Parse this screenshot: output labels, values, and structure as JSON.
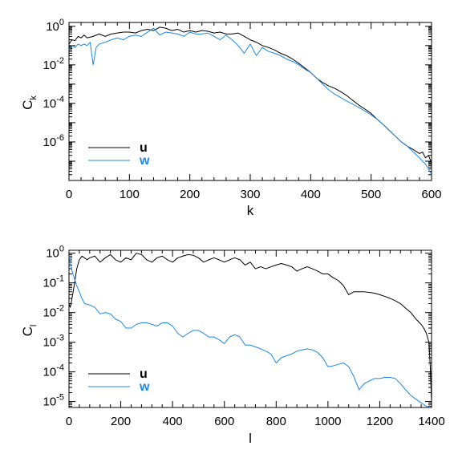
{
  "colors": {
    "u": "#000000",
    "w": "#1e88e5"
  },
  "chart_data": [
    {
      "type": "line",
      "xlabel": "k",
      "ylabel_main": "C",
      "ylabel_sub": "k",
      "xlim": [
        0,
        600
      ],
      "ylim_log10": [
        -8,
        0.2
      ],
      "x_ticks": [
        0,
        100,
        200,
        300,
        400,
        500,
        600
      ],
      "y_ticks": [
        {
          "value": 1,
          "base": "10",
          "exp": "0"
        },
        {
          "value": 0.01,
          "base": "10",
          "exp": "-2"
        },
        {
          "value": 0.0001,
          "base": "10",
          "exp": "-4"
        },
        {
          "value": 1e-06,
          "base": "10",
          "exp": "-6"
        }
      ],
      "legend_position": "bottom-left",
      "series": [
        {
          "name": "u",
          "x": [
            0,
            5,
            10,
            15,
            20,
            25,
            30,
            40,
            50,
            60,
            70,
            80,
            90,
            100,
            110,
            120,
            130,
            140,
            150,
            160,
            170,
            180,
            190,
            200,
            210,
            220,
            230,
            240,
            250,
            260,
            270,
            280,
            290,
            300,
            310,
            320,
            330,
            340,
            350,
            360,
            370,
            380,
            390,
            400,
            410,
            420,
            430,
            440,
            450,
            460,
            470,
            480,
            490,
            500,
            510,
            520,
            530,
            540,
            550,
            560,
            570,
            580,
            585,
            590,
            595,
            600
          ],
          "y": [
            0.12,
            0.2,
            0.18,
            0.3,
            0.25,
            0.35,
            0.25,
            0.3,
            0.4,
            0.3,
            0.4,
            0.45,
            0.5,
            0.5,
            0.45,
            0.6,
            0.7,
            0.6,
            0.9,
            0.8,
            0.6,
            0.7,
            0.5,
            0.6,
            0.5,
            0.6,
            0.55,
            0.45,
            0.5,
            0.4,
            0.4,
            0.45,
            0.3,
            0.2,
            0.15,
            0.1,
            0.08,
            0.06,
            0.04,
            0.03,
            0.02,
            0.012,
            0.007,
            0.004,
            0.002,
            0.0012,
            0.0008,
            0.0006,
            0.0004,
            0.00025,
            0.00014,
            8e-05,
            5e-05,
            3e-05,
            1.5e-05,
            8e-06,
            4e-06,
            2e-06,
            1e-06,
            6e-07,
            4e-07,
            2.5e-07,
            3e-07,
            1.5e-07,
            2e-07,
            8e-08
          ]
        },
        {
          "name": "w",
          "x": [
            0,
            5,
            10,
            15,
            20,
            25,
            30,
            35,
            40,
            45,
            50,
            60,
            70,
            80,
            90,
            100,
            110,
            120,
            130,
            140,
            150,
            160,
            170,
            180,
            190,
            200,
            210,
            220,
            230,
            240,
            250,
            260,
            270,
            280,
            290,
            300,
            310,
            320,
            330,
            340,
            350,
            360,
            370,
            380,
            390,
            400,
            410,
            420,
            430,
            440,
            450,
            460,
            470,
            480,
            490,
            500,
            510,
            520,
            530,
            540,
            550,
            560,
            570,
            580,
            590,
            595,
            600
          ],
          "y": [
            0.06,
            0.1,
            0.08,
            0.12,
            0.1,
            0.12,
            0.1,
            0.15,
            0.01,
            0.08,
            0.12,
            0.15,
            0.2,
            0.25,
            0.2,
            0.3,
            0.35,
            0.3,
            0.5,
            0.8,
            0.35,
            0.5,
            0.45,
            0.4,
            0.3,
            0.5,
            0.4,
            0.4,
            0.45,
            0.3,
            0.2,
            0.35,
            0.2,
            0.1,
            0.04,
            0.12,
            0.03,
            0.08,
            0.05,
            0.04,
            0.03,
            0.02,
            0.015,
            0.01,
            0.006,
            0.004,
            0.002,
            0.001,
            0.0005,
            0.0003,
            0.0002,
            0.00013,
            9e-05,
            6e-05,
            4e-05,
            2.5e-05,
            1.5e-05,
            8e-06,
            4e-06,
            2e-06,
            1e-06,
            6e-07,
            3e-07,
            1.5e-07,
            7e-08,
            4e-08,
            2e-08
          ]
        }
      ]
    },
    {
      "type": "line",
      "xlabel": "l",
      "ylabel_main": "C",
      "ylabel_sub": "l",
      "xlim": [
        0,
        1400
      ],
      "ylim_log10": [
        -5.2,
        0.1
      ],
      "x_ticks": [
        0,
        200,
        400,
        600,
        800,
        1000,
        1200,
        1400
      ],
      "y_ticks": [
        {
          "value": 1,
          "base": "10",
          "exp": "0"
        },
        {
          "value": 0.1,
          "base": "10",
          "exp": "-1"
        },
        {
          "value": 0.01,
          "base": "10",
          "exp": "-2"
        },
        {
          "value": 0.001,
          "base": "10",
          "exp": "-3"
        },
        {
          "value": 0.0001,
          "base": "10",
          "exp": "-4"
        },
        {
          "value": 1e-05,
          "base": "10",
          "exp": "-5"
        }
      ],
      "legend_position": "bottom-left",
      "series": [
        {
          "name": "u",
          "x": [
            0,
            5,
            10,
            20,
            30,
            40,
            50,
            60,
            70,
            80,
            100,
            120,
            140,
            160,
            180,
            200,
            220,
            240,
            260,
            280,
            300,
            320,
            340,
            360,
            380,
            400,
            420,
            440,
            460,
            480,
            500,
            520,
            540,
            560,
            580,
            600,
            620,
            640,
            660,
            680,
            700,
            720,
            740,
            760,
            780,
            800,
            820,
            840,
            860,
            880,
            900,
            920,
            940,
            960,
            980,
            1000,
            1020,
            1040,
            1060,
            1080,
            1100,
            1120,
            1140,
            1160,
            1180,
            1200,
            1220,
            1240,
            1260,
            1280,
            1300,
            1320,
            1340,
            1360,
            1370,
            1380,
            1385,
            1390,
            1395,
            1400
          ],
          "y": [
            0.02,
            0.015,
            0.025,
            0.08,
            0.3,
            0.6,
            0.8,
            0.7,
            0.6,
            0.7,
            0.8,
            0.5,
            0.7,
            0.9,
            0.6,
            0.5,
            0.7,
            0.6,
            1.0,
            0.9,
            0.6,
            0.5,
            0.7,
            0.8,
            0.6,
            0.5,
            0.7,
            0.8,
            0.9,
            0.85,
            0.7,
            0.5,
            0.6,
            0.7,
            0.6,
            0.5,
            0.6,
            0.7,
            0.6,
            0.4,
            0.5,
            0.3,
            0.35,
            0.3,
            0.35,
            0.4,
            0.45,
            0.4,
            0.35,
            0.25,
            0.3,
            0.35,
            0.3,
            0.25,
            0.2,
            0.2,
            0.15,
            0.12,
            0.08,
            0.04,
            0.05,
            0.05,
            0.05,
            0.048,
            0.045,
            0.04,
            0.035,
            0.03,
            0.025,
            0.02,
            0.014,
            0.01,
            0.006,
            0.004,
            0.003,
            0.002,
            0.0014,
            0.001,
            0.00015,
            1e-05
          ]
        },
        {
          "name": "w",
          "x": [
            0,
            5,
            10,
            15,
            20,
            30,
            40,
            50,
            60,
            80,
            100,
            120,
            140,
            160,
            180,
            200,
            220,
            240,
            260,
            280,
            300,
            320,
            340,
            360,
            380,
            400,
            420,
            440,
            460,
            480,
            500,
            520,
            540,
            560,
            580,
            600,
            620,
            640,
            660,
            680,
            700,
            720,
            740,
            760,
            780,
            800,
            820,
            840,
            860,
            880,
            900,
            920,
            940,
            960,
            980,
            1000,
            1020,
            1040,
            1060,
            1080,
            1100,
            1120,
            1140,
            1160,
            1180,
            1200,
            1220,
            1240,
            1260,
            1280,
            1300,
            1320,
            1340,
            1360,
            1380,
            1400
          ],
          "y": [
            0.8,
            0.5,
            0.3,
            0.2,
            0.15,
            0.08,
            0.05,
            0.03,
            0.02,
            0.018,
            0.015,
            0.009,
            0.01,
            0.009,
            0.006,
            0.005,
            0.003,
            0.003,
            0.004,
            0.0045,
            0.0045,
            0.004,
            0.0035,
            0.0045,
            0.0045,
            0.0035,
            0.002,
            0.0015,
            0.002,
            0.0025,
            0.0025,
            0.002,
            0.0015,
            0.0015,
            0.0012,
            0.0009,
            0.0015,
            0.0018,
            0.0015,
            0.0008,
            0.0008,
            0.0007,
            0.0006,
            0.0005,
            0.0004,
            0.0002,
            0.0003,
            0.00035,
            0.0004,
            0.0005,
            0.00055,
            0.0006,
            0.00055,
            0.00045,
            0.0003,
            0.00015,
            0.00016,
            0.00018,
            0.0002,
            0.00015,
            7e-05,
            2.5e-05,
            4e-05,
            5e-05,
            6e-05,
            6e-05,
            6.5e-05,
            6.5e-05,
            6e-05,
            4e-05,
            2.5e-05,
            1.6e-05,
            1.2e-05,
            9e-06,
            7e-06,
            6e-06
          ]
        }
      ]
    }
  ]
}
